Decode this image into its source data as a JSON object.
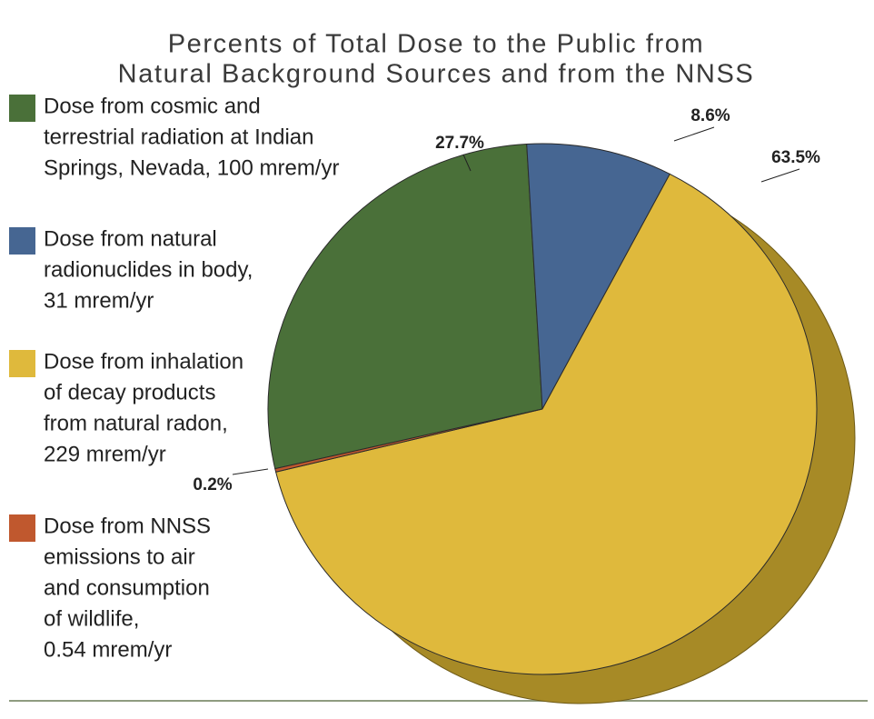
{
  "chart_data": {
    "type": "pie",
    "title": [
      "Percents of Total Dose to the Public from",
      "Natural Background Sources and from the NNSS"
    ],
    "categories": [
      [
        "Dose from cosmic and",
        "terrestrial radiation at Indian",
        "Springs, Nevada, 100 mrem/yr"
      ],
      [
        "Dose from natural",
        "radionuclides in body,",
        "31 mrem/yr"
      ],
      [
        "Dose from inhalation",
        "of decay products",
        "from natural radon,",
        "229 mrem/yr"
      ],
      [
        "Dose from NNSS",
        "emissions to air",
        "and consumption",
        "of wildlife,",
        "0.54 mrem/yr"
      ]
    ],
    "values": [
      27.7,
      8.6,
      63.5,
      0.2
    ],
    "value_labels": [
      "27.7%",
      "8.6%",
      "63.5%",
      "0.2%"
    ],
    "colors": [
      "#4a7039",
      "#466692",
      "#dfb93c",
      "#c0582e"
    ]
  }
}
